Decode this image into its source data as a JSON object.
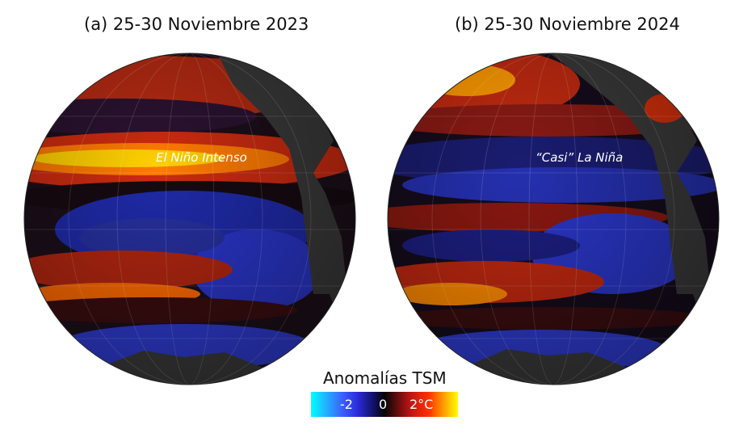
{
  "panels": [
    {
      "title": "(a) 25-30 Noviembre 2023",
      "annotation": "El Niño Intenso"
    },
    {
      "title": "(b) 25-30 Noviembre 2024",
      "annotation": "“Casi” La Niña"
    }
  ],
  "legend": {
    "title": "Anomalías TSM",
    "ticks": [
      "-2",
      "0",
      "2°C"
    ]
  },
  "colors": {
    "cold": "#00ffff",
    "cool": "#2a2ad8",
    "neutral": "#050505",
    "warm": "#c01515",
    "hot": "#ffff00",
    "land": "#3a3a3a"
  }
}
